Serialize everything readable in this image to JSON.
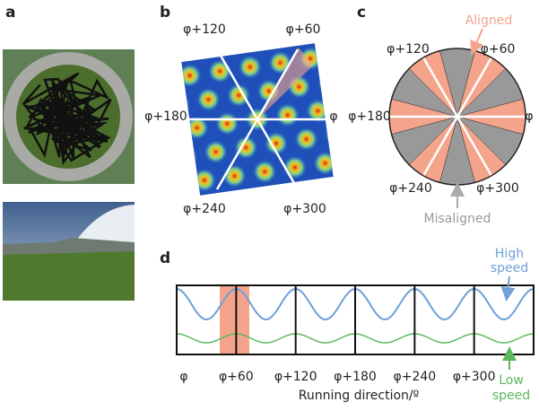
{
  "panels": {
    "a": {
      "label": "a"
    },
    "b": {
      "label": "b",
      "angle_labels": [
        "φ+120",
        "φ+60",
        "φ+180",
        "φ",
        "φ+240",
        "φ+300"
      ]
    },
    "c": {
      "label": "c",
      "angle_labels": [
        "φ+120",
        "φ+60",
        "φ+180",
        "φ",
        "φ+240",
        "φ+300"
      ],
      "aligned": "Aligned",
      "misaligned": "Misaligned"
    },
    "d": {
      "label": "d",
      "x_labels": [
        "φ",
        "φ+60",
        "φ+120",
        "φ+180",
        "φ+240",
        "φ+300"
      ],
      "xlabel": "Running direction/º",
      "high_speed": [
        "High",
        "speed"
      ],
      "low_speed": [
        "Low",
        "speed"
      ]
    }
  }
}
